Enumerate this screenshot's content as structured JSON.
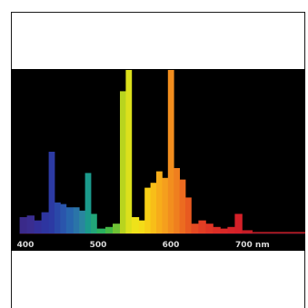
{
  "chart_data": {
    "type": "bar",
    "title": "",
    "xlabel": "",
    "ylabel": "",
    "x_unit": "nm",
    "xlim": [
      380,
      785
    ],
    "ylim": [
      0,
      100
    ],
    "grid": false,
    "background": "#000000",
    "x_ticks": [
      {
        "value": 400,
        "label": "400"
      },
      {
        "value": 500,
        "label": "500"
      },
      {
        "value": 600,
        "label": "600"
      },
      {
        "value": 700,
        "label": "700 nm"
      }
    ],
    "bins": [
      {
        "x0": 392,
        "x1": 402,
        "value": 10,
        "color": "#3a2a8a"
      },
      {
        "x0": 402,
        "x1": 412,
        "value": 11,
        "color": "#3a2d90"
      },
      {
        "x0": 412,
        "x1": 422,
        "value": 8,
        "color": "#33309a"
      },
      {
        "x0": 422,
        "x1": 432,
        "value": 13,
        "color": "#2e35a0"
      },
      {
        "x0": 432,
        "x1": 440,
        "value": 50,
        "color": "#2c3aa3"
      },
      {
        "x0": 440,
        "x1": 448,
        "value": 19,
        "color": "#2a48a8"
      },
      {
        "x0": 448,
        "x1": 456,
        "value": 18,
        "color": "#2a55ac"
      },
      {
        "x0": 456,
        "x1": 466,
        "value": 16,
        "color": "#2865ad"
      },
      {
        "x0": 466,
        "x1": 474,
        "value": 16,
        "color": "#2a74a8"
      },
      {
        "x0": 474,
        "x1": 482,
        "value": 14,
        "color": "#2a85a0"
      },
      {
        "x0": 482,
        "x1": 490,
        "value": 37,
        "color": "#1b9a8c"
      },
      {
        "x0": 490,
        "x1": 498,
        "value": 12,
        "color": "#22a679"
      },
      {
        "x0": 498,
        "x1": 510,
        "value": 3,
        "color": "#2ab05f"
      },
      {
        "x0": 510,
        "x1": 520,
        "value": 4,
        "color": "#45b845"
      },
      {
        "x0": 520,
        "x1": 530,
        "value": 6,
        "color": "#70c234"
      },
      {
        "x0": 530,
        "x1": 538,
        "value": 87,
        "color": "#b8d41f"
      },
      {
        "x0": 538,
        "x1": 546,
        "value": 100,
        "color": "#dce01c"
      },
      {
        "x0": 546,
        "x1": 556,
        "value": 10,
        "color": "#eee21a"
      },
      {
        "x0": 556,
        "x1": 564,
        "value": 8,
        "color": "#f4dc18"
      },
      {
        "x0": 564,
        "x1": 572,
        "value": 28,
        "color": "#f7cf17"
      },
      {
        "x0": 572,
        "x1": 580,
        "value": 31,
        "color": "#f8be18"
      },
      {
        "x0": 580,
        "x1": 588,
        "value": 38,
        "color": "#f7ad1a"
      },
      {
        "x0": 588,
        "x1": 596,
        "value": 34,
        "color": "#f59f1d"
      },
      {
        "x0": 596,
        "x1": 604,
        "value": 100,
        "color": "#f28e1e"
      },
      {
        "x0": 604,
        "x1": 612,
        "value": 40,
        "color": "#ef7f1f"
      },
      {
        "x0": 612,
        "x1": 620,
        "value": 33,
        "color": "#ec6b20"
      },
      {
        "x0": 620,
        "x1": 628,
        "value": 22,
        "color": "#e85a20"
      },
      {
        "x0": 628,
        "x1": 638,
        "value": 6,
        "color": "#e54a22"
      },
      {
        "x0": 638,
        "x1": 648,
        "value": 8,
        "color": "#e23e24"
      },
      {
        "x0": 648,
        "x1": 658,
        "value": 6,
        "color": "#df3525"
      },
      {
        "x0": 658,
        "x1": 668,
        "value": 4,
        "color": "#dc2e26"
      },
      {
        "x0": 668,
        "x1": 678,
        "value": 3,
        "color": "#d92827"
      },
      {
        "x0": 678,
        "x1": 688,
        "value": 4,
        "color": "#d62428"
      },
      {
        "x0": 688,
        "x1": 698,
        "value": 12,
        "color": "#d52028"
      },
      {
        "x0": 698,
        "x1": 712,
        "value": 2,
        "color": "#c41d26"
      },
      {
        "x0": 712,
        "x1": 785,
        "value": 1,
        "color": "#a81a22"
      }
    ]
  }
}
